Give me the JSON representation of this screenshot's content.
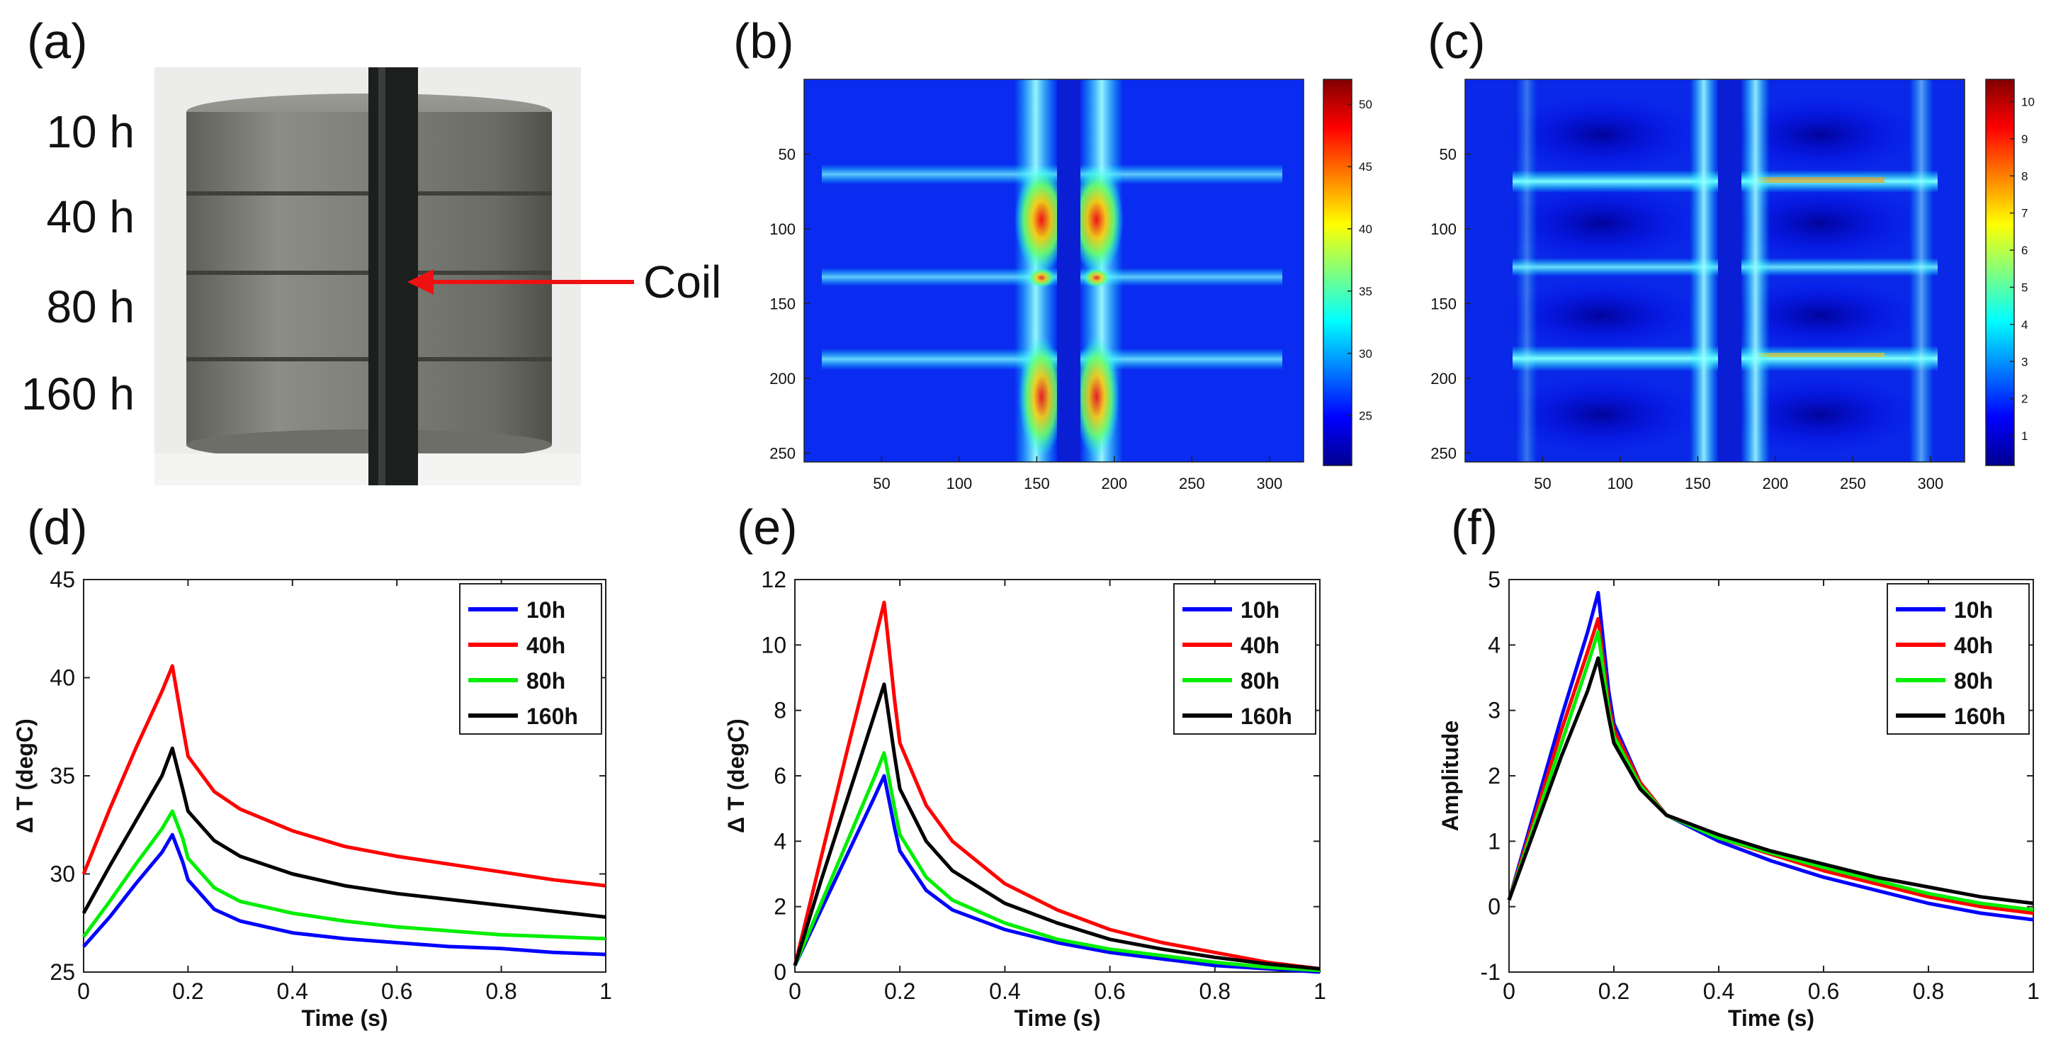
{
  "panels": {
    "a": {
      "tag": "(a)",
      "sample_labels": [
        "10 h",
        "40 h",
        "80 h",
        "160 h"
      ],
      "coil_label": "Coil"
    },
    "b": {
      "tag": "(b)",
      "x_ticks": [
        50,
        100,
        150,
        200,
        250,
        300
      ],
      "y_ticks": [
        50,
        100,
        150,
        200,
        250
      ],
      "colorbar_ticks": [
        25,
        30,
        35,
        40,
        45,
        50
      ]
    },
    "c": {
      "tag": "(c)",
      "x_ticks": [
        50,
        100,
        150,
        200,
        250,
        300
      ],
      "y_ticks": [
        50,
        100,
        150,
        200,
        250
      ],
      "colorbar_ticks": [
        1,
        2,
        3,
        4,
        5,
        6,
        7,
        8,
        9,
        10
      ]
    },
    "d": {
      "tag": "(d)"
    },
    "e": {
      "tag": "(e)"
    },
    "f": {
      "tag": "(f)"
    }
  },
  "series_colors": {
    "10h": "#0000ff",
    "40h": "#ff0000",
    "80h": "#00ee00",
    "160h": "#000000"
  },
  "chart_data": [
    {
      "type": "heatmap",
      "panel": "b",
      "x_ticks": [
        50,
        100,
        150,
        200,
        250,
        300
      ],
      "y_ticks": [
        50,
        100,
        150,
        200,
        250
      ],
      "colorbar_range": [
        21,
        52
      ],
      "colorbar_ticks": [
        25,
        30,
        35,
        40,
        45,
        50
      ]
    },
    {
      "type": "heatmap",
      "panel": "c",
      "x_ticks": [
        50,
        100,
        150,
        200,
        250,
        300
      ],
      "y_ticks": [
        50,
        100,
        150,
        200,
        250
      ],
      "colorbar_range": [
        0.2,
        10.6
      ],
      "colorbar_ticks": [
        1,
        2,
        3,
        4,
        5,
        6,
        7,
        8,
        9,
        10
      ]
    },
    {
      "type": "line",
      "panel": "d",
      "xlabel": "Time (s)",
      "ylabel": "Δ T (degC)",
      "xlim": [
        0,
        1
      ],
      "ylim": [
        25,
        45
      ],
      "x_ticks": [
        0,
        0.2,
        0.4,
        0.6,
        0.8,
        1
      ],
      "y_ticks": [
        25,
        30,
        35,
        40,
        45
      ],
      "legend_position": "top-right",
      "series": [
        {
          "name": "10h",
          "points": [
            [
              0,
              26.3
            ],
            [
              0.05,
              27.8
            ],
            [
              0.1,
              29.5
            ],
            [
              0.15,
              31.1
            ],
            [
              0.17,
              32.0
            ],
            [
              0.19,
              30.6
            ],
            [
              0.2,
              29.7
            ],
            [
              0.25,
              28.2
            ],
            [
              0.3,
              27.6
            ],
            [
              0.4,
              27.0
            ],
            [
              0.5,
              26.7
            ],
            [
              0.6,
              26.5
            ],
            [
              0.7,
              26.3
            ],
            [
              0.8,
              26.2
            ],
            [
              0.9,
              26.0
            ],
            [
              1.0,
              25.9
            ]
          ]
        },
        {
          "name": "40h",
          "points": [
            [
              0,
              30.0
            ],
            [
              0.05,
              33.3
            ],
            [
              0.1,
              36.4
            ],
            [
              0.15,
              39.3
            ],
            [
              0.17,
              40.6
            ],
            [
              0.19,
              37.5
            ],
            [
              0.2,
              36.0
            ],
            [
              0.25,
              34.2
            ],
            [
              0.3,
              33.3
            ],
            [
              0.4,
              32.2
            ],
            [
              0.5,
              31.4
            ],
            [
              0.6,
              30.9
            ],
            [
              0.7,
              30.5
            ],
            [
              0.8,
              30.1
            ],
            [
              0.9,
              29.7
            ],
            [
              1.0,
              29.4
            ]
          ]
        },
        {
          "name": "80h",
          "points": [
            [
              0,
              26.8
            ],
            [
              0.05,
              28.6
            ],
            [
              0.1,
              30.5
            ],
            [
              0.15,
              32.3
            ],
            [
              0.17,
              33.2
            ],
            [
              0.19,
              31.8
            ],
            [
              0.2,
              30.8
            ],
            [
              0.25,
              29.3
            ],
            [
              0.3,
              28.6
            ],
            [
              0.4,
              28.0
            ],
            [
              0.5,
              27.6
            ],
            [
              0.6,
              27.3
            ],
            [
              0.7,
              27.1
            ],
            [
              0.8,
              26.9
            ],
            [
              0.9,
              26.8
            ],
            [
              1.0,
              26.7
            ]
          ]
        },
        {
          "name": "160h",
          "points": [
            [
              0,
              28.0
            ],
            [
              0.05,
              30.4
            ],
            [
              0.1,
              32.7
            ],
            [
              0.15,
              35.0
            ],
            [
              0.17,
              36.4
            ],
            [
              0.19,
              34.3
            ],
            [
              0.2,
              33.2
            ],
            [
              0.25,
              31.7
            ],
            [
              0.3,
              30.9
            ],
            [
              0.4,
              30.0
            ],
            [
              0.5,
              29.4
            ],
            [
              0.6,
              29.0
            ],
            [
              0.7,
              28.7
            ],
            [
              0.8,
              28.4
            ],
            [
              0.9,
              28.1
            ],
            [
              1.0,
              27.8
            ]
          ]
        }
      ]
    },
    {
      "type": "line",
      "panel": "e",
      "xlabel": "Time (s)",
      "ylabel": "Δ T (degC)",
      "xlim": [
        0,
        1
      ],
      "ylim": [
        0,
        12
      ],
      "x_ticks": [
        0,
        0.2,
        0.4,
        0.6,
        0.8,
        1
      ],
      "y_ticks": [
        0,
        2,
        4,
        6,
        8,
        10,
        12
      ],
      "legend_position": "top-right",
      "series": [
        {
          "name": "10h",
          "points": [
            [
              0,
              0.2
            ],
            [
              0.05,
              1.9
            ],
            [
              0.1,
              3.6
            ],
            [
              0.15,
              5.3
            ],
            [
              0.17,
              6.0
            ],
            [
              0.19,
              4.4
            ],
            [
              0.2,
              3.7
            ],
            [
              0.25,
              2.5
            ],
            [
              0.3,
              1.9
            ],
            [
              0.4,
              1.3
            ],
            [
              0.5,
              0.9
            ],
            [
              0.6,
              0.6
            ],
            [
              0.7,
              0.4
            ],
            [
              0.8,
              0.2
            ],
            [
              0.9,
              0.1
            ],
            [
              1.0,
              0.0
            ]
          ]
        },
        {
          "name": "40h",
          "points": [
            [
              0,
              0.2
            ],
            [
              0.05,
              3.5
            ],
            [
              0.1,
              6.8
            ],
            [
              0.15,
              10.0
            ],
            [
              0.17,
              11.3
            ],
            [
              0.19,
              8.3
            ],
            [
              0.2,
              7.0
            ],
            [
              0.25,
              5.1
            ],
            [
              0.3,
              4.0
            ],
            [
              0.4,
              2.7
            ],
            [
              0.5,
              1.9
            ],
            [
              0.6,
              1.3
            ],
            [
              0.7,
              0.9
            ],
            [
              0.8,
              0.6
            ],
            [
              0.9,
              0.3
            ],
            [
              1.0,
              0.1
            ]
          ]
        },
        {
          "name": "80h",
          "points": [
            [
              0,
              0.2
            ],
            [
              0.05,
              2.1
            ],
            [
              0.1,
              4.0
            ],
            [
              0.15,
              5.9
            ],
            [
              0.17,
              6.7
            ],
            [
              0.19,
              5.0
            ],
            [
              0.2,
              4.2
            ],
            [
              0.25,
              2.9
            ],
            [
              0.3,
              2.2
            ],
            [
              0.4,
              1.5
            ],
            [
              0.5,
              1.0
            ],
            [
              0.6,
              0.7
            ],
            [
              0.7,
              0.5
            ],
            [
              0.8,
              0.3
            ],
            [
              0.9,
              0.15
            ],
            [
              1.0,
              0.05
            ]
          ]
        },
        {
          "name": "160h",
          "points": [
            [
              0,
              0.2
            ],
            [
              0.05,
              2.8
            ],
            [
              0.1,
              5.3
            ],
            [
              0.15,
              7.8
            ],
            [
              0.17,
              8.8
            ],
            [
              0.19,
              6.6
            ],
            [
              0.2,
              5.6
            ],
            [
              0.25,
              4.0
            ],
            [
              0.3,
              3.1
            ],
            [
              0.4,
              2.1
            ],
            [
              0.5,
              1.5
            ],
            [
              0.6,
              1.0
            ],
            [
              0.7,
              0.7
            ],
            [
              0.8,
              0.45
            ],
            [
              0.9,
              0.25
            ],
            [
              1.0,
              0.1
            ]
          ]
        }
      ]
    },
    {
      "type": "line",
      "panel": "f",
      "xlabel": "Time (s)",
      "ylabel": "Amplitude",
      "xlim": [
        0,
        1
      ],
      "ylim": [
        -1,
        5
      ],
      "x_ticks": [
        0,
        0.2,
        0.4,
        0.6,
        0.8,
        1
      ],
      "y_ticks": [
        -1,
        0,
        1,
        2,
        3,
        4,
        5
      ],
      "legend_position": "top-right",
      "series": [
        {
          "name": "10h",
          "points": [
            [
              0,
              0.1
            ],
            [
              0.05,
              1.5
            ],
            [
              0.1,
              2.9
            ],
            [
              0.15,
              4.2
            ],
            [
              0.17,
              4.8
            ],
            [
              0.19,
              3.3
            ],
            [
              0.2,
              2.8
            ],
            [
              0.25,
              1.9
            ],
            [
              0.3,
              1.4
            ],
            [
              0.4,
              1.0
            ],
            [
              0.5,
              0.7
            ],
            [
              0.6,
              0.45
            ],
            [
              0.7,
              0.25
            ],
            [
              0.8,
              0.05
            ],
            [
              0.9,
              -0.1
            ],
            [
              1.0,
              -0.2
            ]
          ]
        },
        {
          "name": "40h",
          "points": [
            [
              0,
              0.1
            ],
            [
              0.05,
              1.4
            ],
            [
              0.1,
              2.7
            ],
            [
              0.15,
              3.9
            ],
            [
              0.17,
              4.4
            ],
            [
              0.19,
              3.1
            ],
            [
              0.2,
              2.7
            ],
            [
              0.25,
              1.9
            ],
            [
              0.3,
              1.4
            ],
            [
              0.4,
              1.05
            ],
            [
              0.5,
              0.8
            ],
            [
              0.6,
              0.55
            ],
            [
              0.7,
              0.35
            ],
            [
              0.8,
              0.15
            ],
            [
              0.9,
              0.0
            ],
            [
              1.0,
              -0.1
            ]
          ]
        },
        {
          "name": "80h",
          "points": [
            [
              0,
              0.1
            ],
            [
              0.05,
              1.3
            ],
            [
              0.1,
              2.5
            ],
            [
              0.15,
              3.7
            ],
            [
              0.17,
              4.2
            ],
            [
              0.19,
              3.0
            ],
            [
              0.2,
              2.6
            ],
            [
              0.25,
              1.85
            ],
            [
              0.3,
              1.4
            ],
            [
              0.4,
              1.05
            ],
            [
              0.5,
              0.82
            ],
            [
              0.6,
              0.6
            ],
            [
              0.7,
              0.4
            ],
            [
              0.8,
              0.2
            ],
            [
              0.9,
              0.05
            ],
            [
              1.0,
              -0.05
            ]
          ]
        },
        {
          "name": "160h",
          "points": [
            [
              0,
              0.1
            ],
            [
              0.05,
              1.2
            ],
            [
              0.1,
              2.3
            ],
            [
              0.15,
              3.3
            ],
            [
              0.17,
              3.8
            ],
            [
              0.19,
              2.9
            ],
            [
              0.2,
              2.5
            ],
            [
              0.25,
              1.8
            ],
            [
              0.3,
              1.4
            ],
            [
              0.4,
              1.1
            ],
            [
              0.5,
              0.85
            ],
            [
              0.6,
              0.65
            ],
            [
              0.7,
              0.45
            ],
            [
              0.8,
              0.3
            ],
            [
              0.9,
              0.15
            ],
            [
              1.0,
              0.05
            ]
          ]
        }
      ]
    }
  ]
}
